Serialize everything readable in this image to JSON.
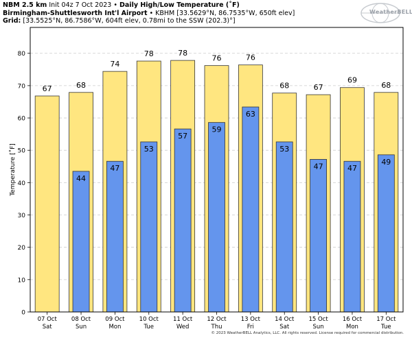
{
  "header": {
    "line1_bold": "NBM 2.5 km",
    "line1_init": "Init 04z 7 Oct 2023",
    "line1_sep": "•",
    "line1_title": "Daily High/Low Temperature (˚F)",
    "line2_bold": "Birmingham-Shuttlesworth Int'l Airport",
    "line2_sep": "•",
    "line2_rest": "KBHM [33.5629°N, 86.7535°W, 650ft elev]",
    "line3_bold": "Grid:",
    "line3_rest": "[33.5525°N, 86.7586°W, 604ft elev, 0.78mi to the SSW (202.3)°]"
  },
  "logo": {
    "text": "WeatherBELL"
  },
  "copyright": "© 2023 WeatherBELL Analytics, LLC. All rights reserved. License required for commercial distribution.",
  "colors": {
    "high": "#ffe680",
    "low": "#6495ed",
    "grid": "#cccccc",
    "edge": "#333333"
  },
  "chart_data": {
    "type": "bar",
    "categories": [
      [
        "07 Oct",
        "Sat"
      ],
      [
        "08 Oct",
        "Sun"
      ],
      [
        "09 Oct",
        "Mon"
      ],
      [
        "10 Oct",
        "Tue"
      ],
      [
        "11 Oct",
        "Wed"
      ],
      [
        "12 Oct",
        "Thu"
      ],
      [
        "13 Oct",
        "Fri"
      ],
      [
        "14 Oct",
        "Sat"
      ],
      [
        "15 Oct",
        "Sun"
      ],
      [
        "16 Oct",
        "Mon"
      ],
      [
        "17 Oct",
        "Tue"
      ]
    ],
    "series": [
      {
        "values": [
          66.8,
          67.9,
          74.4,
          77.6,
          77.8,
          76.2,
          76.4,
          67.7,
          67.2,
          69.4,
          67.9
        ],
        "labels": [
          "67",
          "68",
          "74",
          "78",
          "78",
          "76",
          "76",
          "68",
          "67",
          "69",
          "68"
        ]
      },
      {
        "values": [
          null,
          43.5,
          46.6,
          52.6,
          56.6,
          58.6,
          63.4,
          52.6,
          47.2,
          46.6,
          48.6
        ],
        "labels": [
          "",
          "44",
          "47",
          "53",
          "57",
          "59",
          "63",
          "53",
          "47",
          "47",
          "49"
        ]
      }
    ],
    "ylabel": "Temperature [˚F]",
    "ylim": [
      0,
      88
    ],
    "yticks": [
      0,
      10,
      20,
      30,
      40,
      50,
      60,
      70,
      80
    ],
    "grid": true
  }
}
